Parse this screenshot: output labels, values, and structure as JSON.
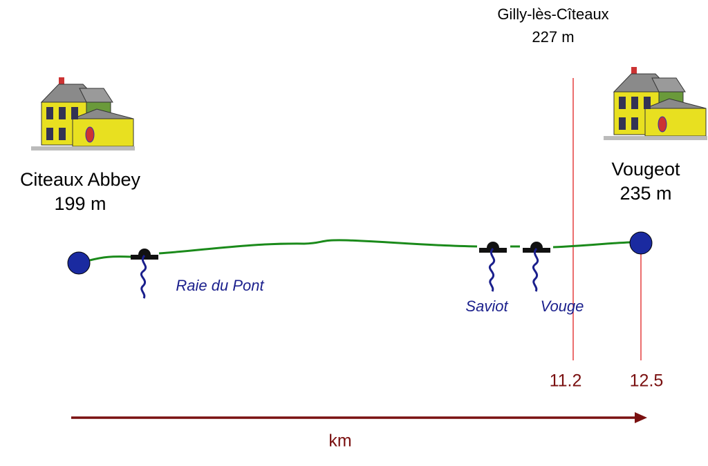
{
  "start": {
    "name": "Citeaux Abbey",
    "altitude": "199 m"
  },
  "end": {
    "name": "Vougeot",
    "altitude": "235 m"
  },
  "waypoint": {
    "name": "Gilly-lès-Cîteaux",
    "altitude": "227 m"
  },
  "rivers": [
    "Raie du Pont",
    "Saviot",
    "Vouge"
  ],
  "distances": [
    "11.2",
    "12.5"
  ],
  "axis_label": "km"
}
